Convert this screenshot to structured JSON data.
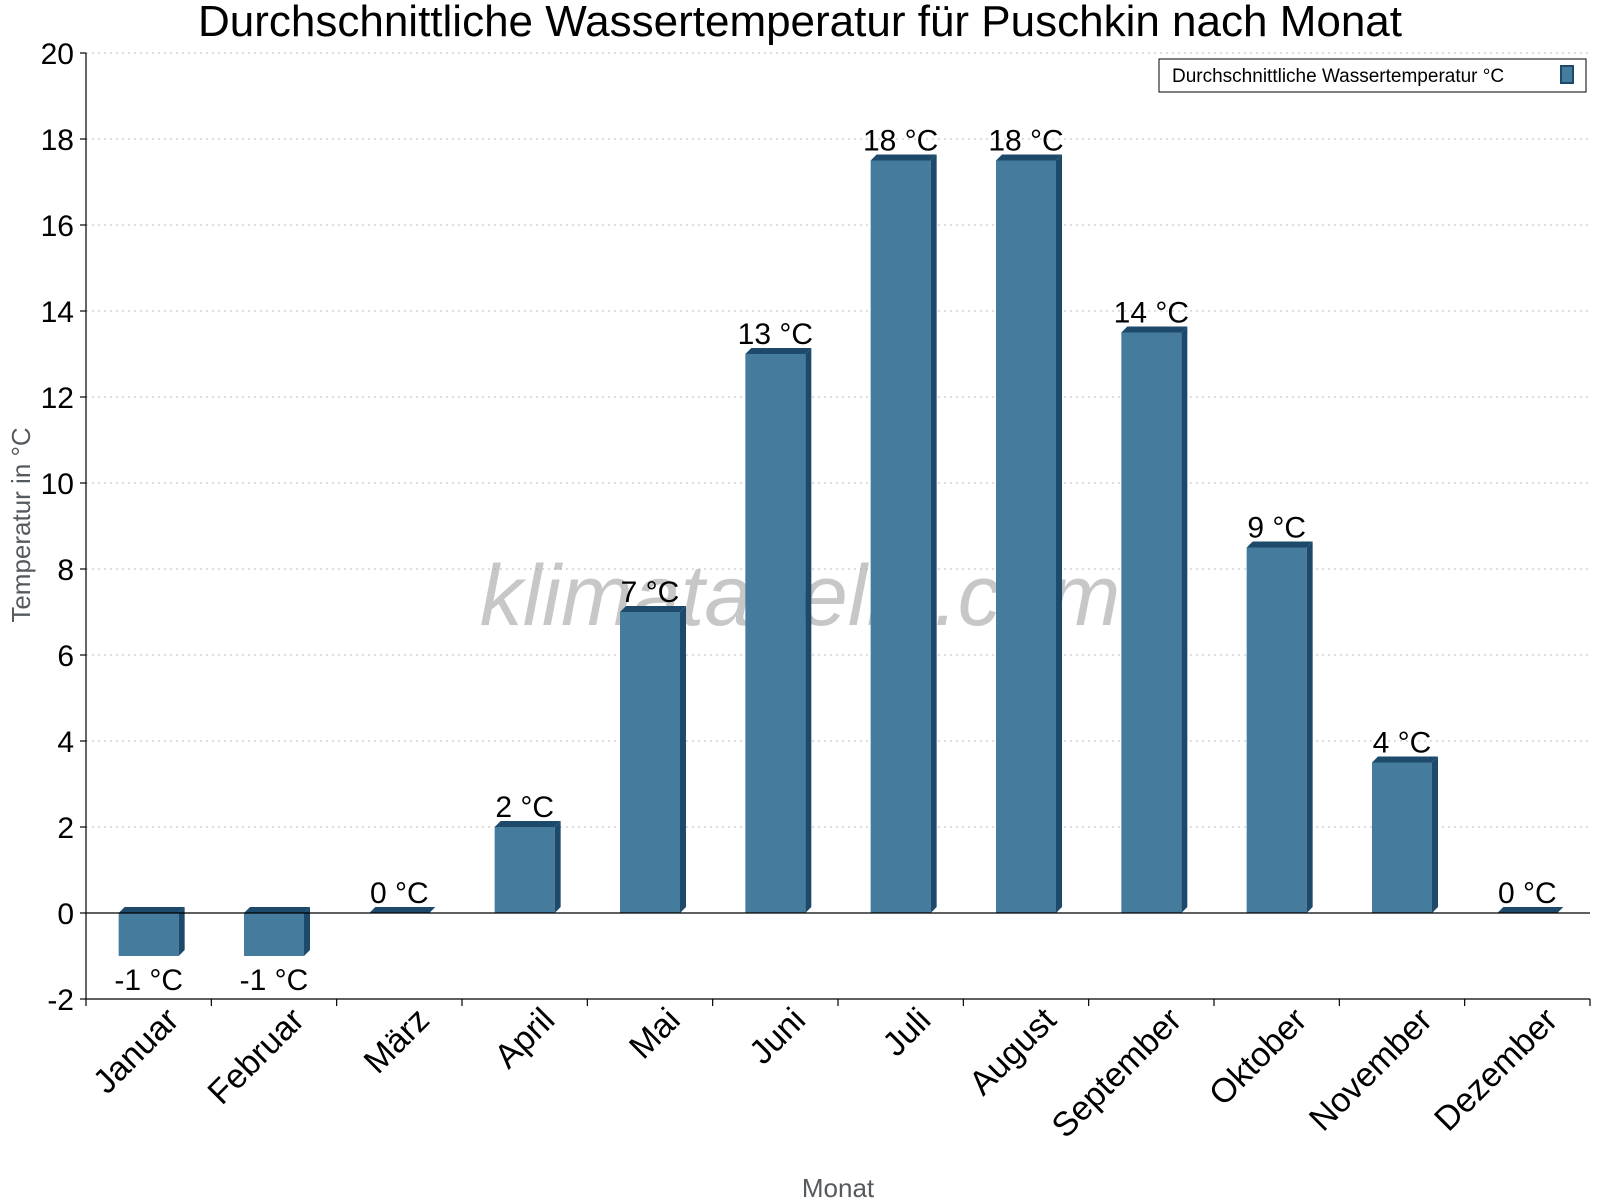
{
  "chart_data": {
    "type": "bar",
    "title": "Durchschnittliche Wassertemperatur für Puschkin nach Monat",
    "xlabel": "Monat",
    "ylabel": "Temperatur in °C",
    "ylim": [
      -2,
      20
    ],
    "yticks": [
      -2,
      0,
      2,
      4,
      6,
      8,
      10,
      12,
      14,
      16,
      18,
      20
    ],
    "grid": true,
    "legend_position": "top-right",
    "categories": [
      "Januar",
      "Februar",
      "März",
      "April",
      "Mai",
      "Juni",
      "Juli",
      "August",
      "September",
      "Oktober",
      "November",
      "Dezember"
    ],
    "series": [
      {
        "name": "Durchschnittliche Wassertemperatur °C",
        "values": [
          -1,
          -1,
          0,
          2,
          7,
          13,
          17.5,
          17.5,
          13.5,
          8.5,
          3.5,
          0
        ],
        "labels": [
          "-1 °C",
          "-1 °C",
          "0 °C",
          "2 °C",
          "7 °C",
          "13 °C",
          "18 °C",
          "18 °C",
          "14 °C",
          "9 °C",
          "4 °C",
          "0 °C"
        ],
        "color": "#457b9d",
        "edge_color": "#1d4a6b"
      }
    ],
    "watermark": "klimatabelle.com"
  }
}
